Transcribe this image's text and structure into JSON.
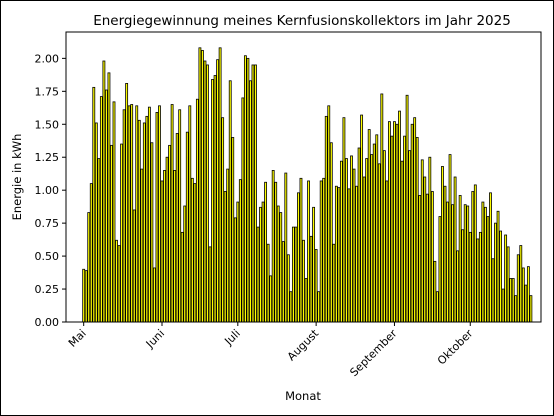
{
  "chart_data": {
    "type": "bar",
    "title": "Energiegewinnung meines Kernfusionskollektors im Jahr 2025",
    "xlabel": "Monat",
    "ylabel": "Energie in kWh",
    "ylim": [
      0,
      2.2
    ],
    "yticks": [
      0.0,
      0.25,
      0.5,
      0.75,
      1.0,
      1.25,
      1.5,
      1.75,
      2.0
    ],
    "ytick_labels": [
      "0.00",
      "0.25",
      "0.50",
      "0.75",
      "1.00",
      "1.25",
      "1.50",
      "1.75",
      "2.00"
    ],
    "xticks": [
      {
        "date": "2025-05-01",
        "label": "Mai"
      },
      {
        "date": "2025-06-01",
        "label": "Juni"
      },
      {
        "date": "2025-07-01",
        "label": "Juli"
      },
      {
        "date": "2025-08-01",
        "label": "August"
      },
      {
        "date": "2025-09-01",
        "label": "September"
      },
      {
        "date": "2025-10-01",
        "label": "Oktober"
      }
    ],
    "xlim": [
      "2025-04-24",
      "2025-10-29"
    ],
    "bar_color": "#ffff00",
    "edge_color": "#000000",
    "x": [
      "2025-05-01",
      "2025-05-02",
      "2025-05-03",
      "2025-05-04",
      "2025-05-05",
      "2025-05-06",
      "2025-05-07",
      "2025-05-08",
      "2025-05-09",
      "2025-05-10",
      "2025-05-11",
      "2025-05-12",
      "2025-05-13",
      "2025-05-14",
      "2025-05-15",
      "2025-05-16",
      "2025-05-17",
      "2025-05-18",
      "2025-05-19",
      "2025-05-20",
      "2025-05-21",
      "2025-05-22",
      "2025-05-23",
      "2025-05-24",
      "2025-05-25",
      "2025-05-26",
      "2025-05-27",
      "2025-05-28",
      "2025-05-29",
      "2025-05-30",
      "2025-05-31",
      "2025-06-01",
      "2025-06-02",
      "2025-06-03",
      "2025-06-04",
      "2025-06-05",
      "2025-06-06",
      "2025-06-07",
      "2025-06-08",
      "2025-06-09",
      "2025-06-10",
      "2025-06-11",
      "2025-06-12",
      "2025-06-13",
      "2025-06-14",
      "2025-06-15",
      "2025-06-16",
      "2025-06-17",
      "2025-06-18",
      "2025-06-19",
      "2025-06-20",
      "2025-06-21",
      "2025-06-22",
      "2025-06-23",
      "2025-06-24",
      "2025-06-25",
      "2025-06-26",
      "2025-06-27",
      "2025-06-28",
      "2025-06-29",
      "2025-06-30",
      "2025-07-01",
      "2025-07-02",
      "2025-07-03",
      "2025-07-04",
      "2025-07-05",
      "2025-07-06",
      "2025-07-07",
      "2025-07-08",
      "2025-07-09",
      "2025-07-10",
      "2025-07-11",
      "2025-07-12",
      "2025-07-13",
      "2025-07-14",
      "2025-07-15",
      "2025-07-16",
      "2025-07-17",
      "2025-07-18",
      "2025-07-19",
      "2025-07-20",
      "2025-07-21",
      "2025-07-22",
      "2025-07-23",
      "2025-07-24",
      "2025-07-25",
      "2025-07-26",
      "2025-07-27",
      "2025-07-28",
      "2025-07-29",
      "2025-07-30",
      "2025-07-31",
      "2025-08-01",
      "2025-08-02",
      "2025-08-03",
      "2025-08-04",
      "2025-08-05",
      "2025-08-06",
      "2025-08-07",
      "2025-08-08",
      "2025-08-09",
      "2025-08-10",
      "2025-08-11",
      "2025-08-12",
      "2025-08-13",
      "2025-08-14",
      "2025-08-15",
      "2025-08-16",
      "2025-08-17",
      "2025-08-18",
      "2025-08-19",
      "2025-08-20",
      "2025-08-21",
      "2025-08-22",
      "2025-08-23",
      "2025-08-24",
      "2025-08-25",
      "2025-08-26",
      "2025-08-27",
      "2025-08-28",
      "2025-08-29",
      "2025-08-30",
      "2025-08-31",
      "2025-09-01",
      "2025-09-02",
      "2025-09-03",
      "2025-09-04",
      "2025-09-05",
      "2025-09-06",
      "2025-09-07",
      "2025-09-08",
      "2025-09-09",
      "2025-09-10",
      "2025-09-11",
      "2025-09-12",
      "2025-09-13",
      "2025-09-14",
      "2025-09-15",
      "2025-09-16",
      "2025-09-17",
      "2025-09-18",
      "2025-09-19",
      "2025-09-20",
      "2025-09-21",
      "2025-09-22",
      "2025-09-23",
      "2025-09-24",
      "2025-09-25",
      "2025-09-26",
      "2025-09-27",
      "2025-09-28",
      "2025-09-29",
      "2025-09-30",
      "2025-10-01",
      "2025-10-02",
      "2025-10-03",
      "2025-10-04",
      "2025-10-05",
      "2025-10-06",
      "2025-10-07",
      "2025-10-08",
      "2025-10-09",
      "2025-10-10",
      "2025-10-11",
      "2025-10-12",
      "2025-10-13",
      "2025-10-14",
      "2025-10-15",
      "2025-10-16",
      "2025-10-17",
      "2025-10-18",
      "2025-10-19",
      "2025-10-20",
      "2025-10-21",
      "2025-10-22",
      "2025-10-23",
      "2025-10-24",
      "2025-10-25"
    ],
    "values": [
      0.4,
      0.39,
      0.83,
      1.05,
      1.78,
      1.51,
      1.24,
      1.71,
      1.98,
      1.76,
      1.89,
      1.34,
      1.67,
      0.62,
      0.58,
      1.35,
      1.61,
      1.81,
      1.64,
      1.65,
      0.85,
      1.64,
      1.53,
      1.16,
      1.51,
      1.56,
      1.63,
      1.36,
      0.41,
      1.59,
      1.64,
      1.07,
      1.15,
      1.25,
      1.34,
      1.65,
      1.15,
      1.43,
      1.61,
      0.68,
      0.88,
      1.44,
      1.64,
      1.09,
      1.05,
      1.69,
      2.08,
      2.06,
      1.98,
      1.95,
      0.57,
      1.84,
      1.87,
      1.99,
      2.08,
      1.55,
      0.99,
      1.16,
      1.83,
      1.4,
      0.79,
      0.91,
      1.08,
      1.7,
      2.02,
      2.0,
      1.83,
      1.95,
      1.95,
      0.72,
      0.87,
      0.91,
      1.06,
      0.59,
      0.35,
      1.15,
      1.06,
      0.88,
      0.83,
      0.61,
      1.13,
      0.51,
      0.23,
      0.72,
      0.72,
      0.98,
      1.09,
      0.62,
      0.33,
      1.07,
      0.65,
      0.87,
      0.55,
      0.23,
      1.07,
      1.09,
      1.56,
      1.64,
      1.36,
      0.59,
      1.03,
      1.02,
      1.22,
      1.55,
      1.24,
      1.01,
      1.26,
      1.16,
      1.03,
      1.32,
      1.57,
      1.1,
      1.24,
      1.46,
      1.27,
      1.35,
      1.42,
      1.2,
      1.73,
      1.3,
      1.07,
      1.52,
      1.41,
      1.52,
      1.5,
      1.6,
      1.22,
      1.41,
      1.72,
      1.3,
      1.5,
      1.55,
      1.4,
      0.96,
      1.23,
      1.1,
      0.97,
      1.25,
      0.99,
      0.46,
      0.23,
      0.8,
      1.18,
      1.03,
      0.91,
      1.27,
      0.89,
      1.1,
      0.54,
      0.96,
      0.7,
      0.89,
      0.88,
      0.68,
      0.99,
      1.04,
      0.63,
      0.68,
      0.91,
      0.87,
      0.8,
      0.98,
      0.48,
      0.75,
      0.84,
      0.69,
      0.25,
      0.66,
      0.57,
      0.33,
      0.33,
      0.2,
      0.51,
      0.58,
      0.41,
      0.28,
      0.42,
      0.2
    ]
  }
}
